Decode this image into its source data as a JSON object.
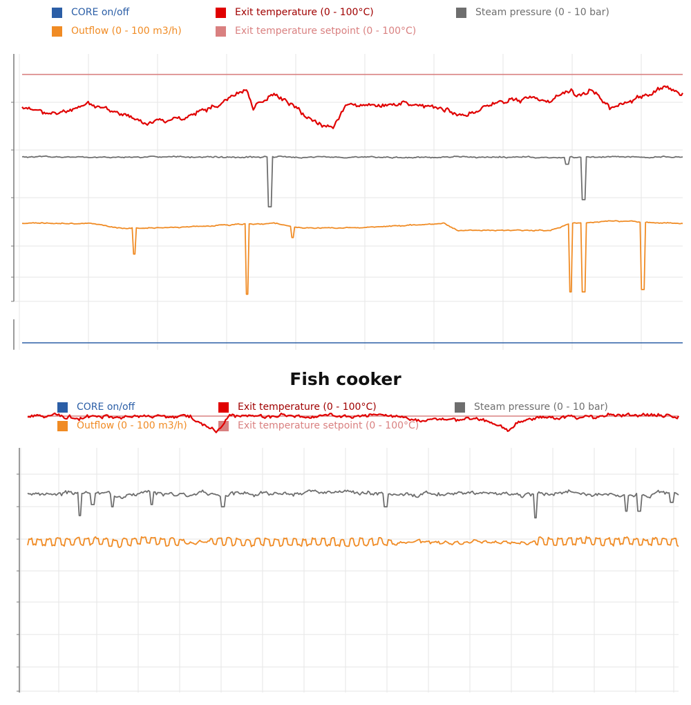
{
  "colors": {
    "core": "#2B5EA6",
    "exit_temp": "#E00000",
    "steam": "#6E6E6E",
    "outflow": "#F08B24",
    "setpoint": "#D98080"
  },
  "chart_data": [
    {
      "type": "line",
      "title": "",
      "legend": [
        {
          "name": "CORE on/off",
          "color": "#2B5EA6"
        },
        {
          "name": "Exit temperature (0 - 100°C)",
          "color": "#E00000"
        },
        {
          "name": "Steam pressure (0 - 10 bar)",
          "color": "#6E6E6E"
        },
        {
          "name": "Outflow (0 - 100 m3/h)",
          "color": "#F08B24"
        },
        {
          "name": "Exit temperature setpoint (0 - 100°C)",
          "color": "#D98080"
        }
      ],
      "ylim": [
        0,
        100
      ],
      "series": [
        {
          "name": "Exit temperature setpoint",
          "key": "setpoint",
          "level": 96
        },
        {
          "name": "Exit temperature",
          "key": "exit_temp",
          "base": 80,
          "seed": 11,
          "noise": 1.0,
          "trend": [
            [
              0,
              82
            ],
            [
              0.05,
              79
            ],
            [
              0.1,
              84
            ],
            [
              0.15,
              79
            ],
            [
              0.19,
              76
            ],
            [
              0.25,
              78
            ],
            [
              0.3,
              84
            ],
            [
              0.34,
              90
            ],
            [
              0.35,
              82
            ],
            [
              0.38,
              88
            ],
            [
              0.43,
              78
            ],
            [
              0.47,
              73
            ],
            [
              0.49,
              84
            ],
            [
              0.53,
              82
            ],
            [
              0.58,
              84
            ],
            [
              0.63,
              82
            ],
            [
              0.67,
              79
            ],
            [
              0.72,
              84
            ],
            [
              0.77,
              86
            ],
            [
              0.8,
              84
            ],
            [
              0.83,
              90
            ],
            [
              0.84,
              87
            ],
            [
              0.86,
              90
            ],
            [
              0.89,
              82
            ],
            [
              0.93,
              86
            ],
            [
              0.97,
              90
            ],
            [
              1,
              88
            ]
          ]
        },
        {
          "name": "Steam pressure",
          "key": "steam",
          "base": 61,
          "seed": 5,
          "noise": 0.3,
          "spikes": [
            [
              0.375,
              40
            ],
            [
              0.825,
              58
            ],
            [
              0.85,
              43
            ]
          ]
        },
        {
          "name": "Outflow",
          "key": "outflow",
          "base": 33,
          "seed": 9,
          "noise": 0.25,
          "trend": [
            [
              0,
              33
            ],
            [
              0.1,
              33
            ],
            [
              0.15,
              31
            ],
            [
              0.2,
              31
            ],
            [
              0.38,
              33
            ],
            [
              0.42,
              31
            ],
            [
              0.5,
              31
            ],
            [
              0.64,
              33
            ],
            [
              0.66,
              30
            ],
            [
              0.8,
              30
            ],
            [
              0.83,
              33
            ],
            [
              0.9,
              34
            ],
            [
              1,
              33
            ]
          ],
          "spikes": [
            [
              0.17,
              20
            ],
            [
              0.34,
              3
            ],
            [
              0.41,
              27
            ],
            [
              0.83,
              4
            ],
            [
              0.85,
              4
            ],
            [
              0.94,
              5
            ]
          ]
        },
        {
          "name": "CORE on/off",
          "key": "core",
          "level": 0
        }
      ]
    },
    {
      "type": "line",
      "title": "Fish cooker",
      "legend": [
        {
          "name": "CORE on/off",
          "color": "#2B5EA6"
        },
        {
          "name": "Exit temperature (0 - 100°C)",
          "color": "#E00000"
        },
        {
          "name": "Steam pressure (0 - 10 bar)",
          "color": "#6E6E6E"
        },
        {
          "name": "Outflow (0 - 100 m3/h)",
          "color": "#F08B24"
        },
        {
          "name": "Exit temperature setpoint (0 - 100°C)",
          "color": "#D98080"
        }
      ],
      "ylim": [
        0,
        100
      ],
      "series": [
        {
          "name": "Exit temperature setpoint",
          "key": "setpoint",
          "level": 90
        },
        {
          "name": "Exit temperature",
          "key": "exit_temp",
          "base": 90,
          "seed": 21,
          "noise": 0.9,
          "trend": [
            [
              0,
              90
            ],
            [
              0.25,
              90
            ],
            [
              0.27,
              86
            ],
            [
              0.29,
              83
            ],
            [
              0.31,
              90
            ],
            [
              0.55,
              90
            ],
            [
              0.6,
              88
            ],
            [
              0.7,
              89
            ],
            [
              0.74,
              84
            ],
            [
              0.76,
              88
            ],
            [
              0.8,
              90
            ],
            [
              1,
              90
            ]
          ]
        },
        {
          "name": "Steam pressure",
          "key": "steam",
          "base": 55,
          "seed": 3,
          "noise": 1.0,
          "spikes": [
            [
              0.08,
              45
            ],
            [
              0.1,
              50
            ],
            [
              0.13,
              49
            ],
            [
              0.19,
              50
            ],
            [
              0.3,
              49
            ],
            [
              0.55,
              49
            ],
            [
              0.78,
              44
            ],
            [
              0.92,
              47
            ],
            [
              0.94,
              47
            ],
            [
              0.99,
              51
            ]
          ]
        },
        {
          "name": "Outflow",
          "key": "outflow",
          "base": 33,
          "seed": 7,
          "noise": 0.6,
          "wave": 1
        }
      ]
    }
  ]
}
